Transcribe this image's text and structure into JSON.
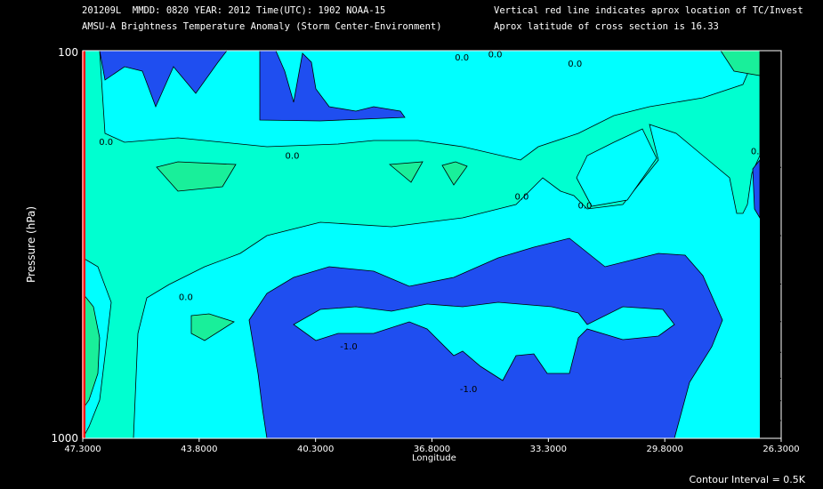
{
  "header": {
    "line1": "201209L  MMDD: 0820 YEAR: 2012 Time(UTC): 1902 NOAA-15",
    "line2": "AMSU-A Brightness Temperature Anomaly (Storm Center-Environment)",
    "line3": "Vertical red line indicates aprox location of TC/Invest",
    "line4": "Aprox latitude of cross section is 16.33"
  },
  "footer": {
    "contour_interval": "Contour Interval = 0.5K"
  },
  "colors": {
    "dark_blue": "#1f4ef0",
    "cyan": "#00ffff",
    "aquamarine": "#00ffd0",
    "light_green": "#19ef9a",
    "marker_red": "#ff0000"
  },
  "chart_data": {
    "type": "contour",
    "xlabel": "Longitude",
    "ylabel": "Pressure (hPa)",
    "x_range": [
      47.3,
      26.3
    ],
    "y_range": [
      1000,
      100
    ],
    "x_tick_labels": [
      "47.3000",
      "43.8000",
      "40.3000",
      "36.8000",
      "33.3000",
      "29.8000",
      "26.3000"
    ],
    "y_tick_labels": [
      "100",
      "1000"
    ],
    "storm_center_longitude": 47.3,
    "contour_labels": [
      {
        "text": "0.0",
        "lon": 46.6,
        "p": 175
      },
      {
        "text": "0.0",
        "lon": 41.0,
        "p": 190
      },
      {
        "text": "0.0",
        "lon": 44.2,
        "p": 440
      },
      {
        "text": "0.0",
        "lon": 35.9,
        "p": 106
      },
      {
        "text": "0.0",
        "lon": 34.9,
        "p": 104
      },
      {
        "text": "0.0",
        "lon": 32.5,
        "p": 110
      },
      {
        "text": "0.0",
        "lon": 34.1,
        "p": 242
      },
      {
        "text": "0.0",
        "lon": 32.2,
        "p": 255
      },
      {
        "text": "0.0",
        "lon": 27.0,
        "p": 185
      },
      {
        "text": "-1.0",
        "lon": 39.3,
        "p": 590
      },
      {
        "text": "-1.0",
        "lon": 35.7,
        "p": 760
      }
    ],
    "levels": [
      -1.5,
      -1.0,
      -0.5,
      0.0,
      0.5
    ]
  }
}
